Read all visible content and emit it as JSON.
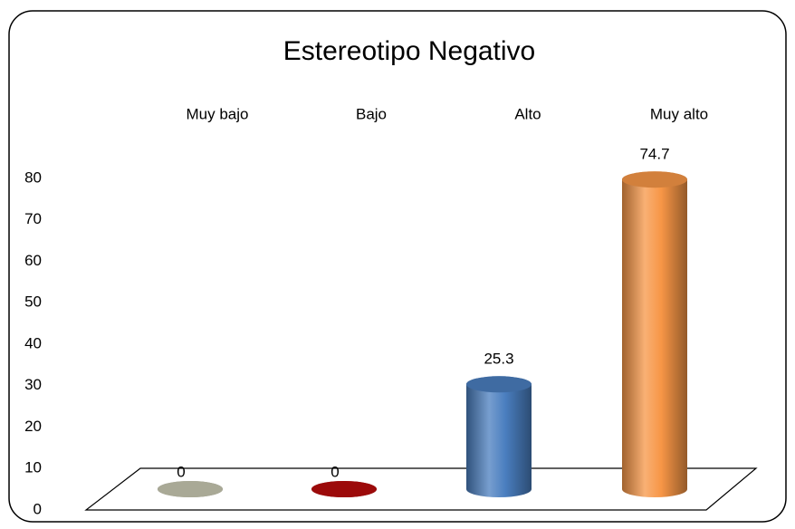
{
  "chart_data": {
    "type": "bar",
    "title": "Estereotipo Negativo",
    "categories": [
      "Muy bajo",
      "Bajo",
      "Alto",
      "Muy alto"
    ],
    "values": [
      0,
      0,
      25.3,
      74.7
    ],
    "colors": [
      "#a9a996",
      "#9c0a0a",
      "#4a7ebf",
      "#f79646"
    ],
    "ylim": [
      0,
      80
    ],
    "yticks": [
      0,
      10,
      20,
      30,
      40,
      50,
      60,
      70,
      80
    ]
  }
}
